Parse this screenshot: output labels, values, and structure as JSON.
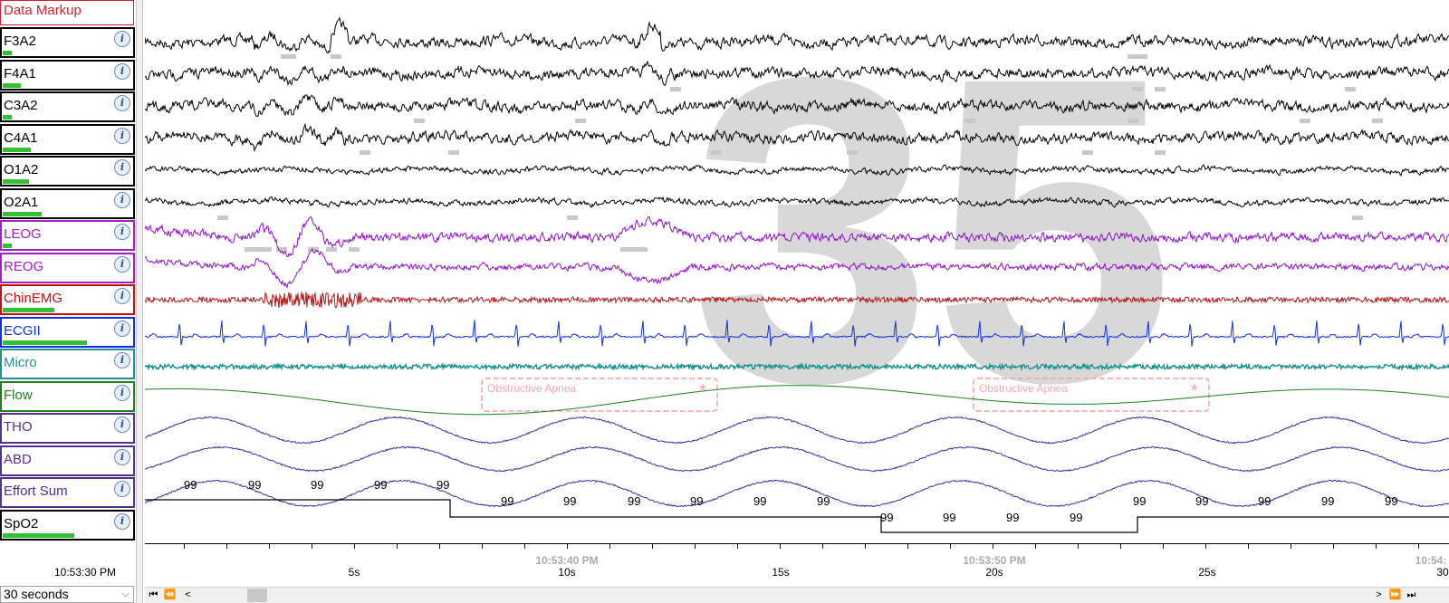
{
  "sidebar": {
    "header": "Data Markup",
    "channels": [
      {
        "name": "F3A2",
        "color": "#000000",
        "border": "#000000",
        "level": 0.07
      },
      {
        "name": "F4A1",
        "color": "#000000",
        "border": "#000000",
        "level": 0.14
      },
      {
        "name": "C3A2",
        "color": "#000000",
        "border": "#000000",
        "level": 0.07
      },
      {
        "name": "C4A1",
        "color": "#000000",
        "border": "#000000",
        "level": 0.22
      },
      {
        "name": "O1A2",
        "color": "#000000",
        "border": "#000000",
        "level": 0.2
      },
      {
        "name": "O2A1",
        "color": "#000000",
        "border": "#000000",
        "level": 0.3
      },
      {
        "name": "LEOG",
        "color": "#a020c0",
        "border": "#a020c0",
        "level": 0.07
      },
      {
        "name": "REOG",
        "color": "#a020c0",
        "border": "#a020c0",
        "level": 0.0
      },
      {
        "name": "ChinEMG",
        "color": "#c01010",
        "border": "#c01010",
        "level": 0.4
      },
      {
        "name": "ECGII",
        "color": "#1030e0",
        "border": "#1030e0",
        "level": 0.65
      },
      {
        "name": "Micro",
        "color": "#209090",
        "border": "#209090",
        "level": 0.0
      },
      {
        "name": "Flow",
        "color": "#208020",
        "border": "#208020",
        "level": 0.0
      },
      {
        "name": "THO",
        "color": "#503090",
        "border": "#503090",
        "level": 0.0
      },
      {
        "name": "ABD",
        "color": "#503090",
        "border": "#503090",
        "level": 0.0
      },
      {
        "name": "Effort Sum",
        "color": "#503090",
        "border": "#503090",
        "level": 0.0
      },
      {
        "name": "SpO2",
        "color": "#000000",
        "border": "#000000",
        "level": 0.55
      }
    ],
    "start_time": "10:53:30 PM",
    "duration": "30 seconds"
  },
  "epoch_number": "35",
  "events": [
    {
      "label": "Obstructive Apnea"
    },
    {
      "label": "Obstructive Apnea"
    }
  ],
  "spo2_values": [
    "99",
    "99",
    "99",
    "99",
    "99",
    "99",
    "99",
    "99",
    "99",
    "99",
    "99",
    "99",
    "99",
    "99",
    "99",
    "99",
    "99",
    "99",
    "99",
    "99",
    "99",
    "99",
    "99",
    "99",
    "99"
  ],
  "axis": {
    "second_labels": [
      "5s",
      "10s",
      "15s",
      "20s",
      "25s",
      "30"
    ],
    "time_labels": [
      "10:53:40 PM",
      "10:53:50 PM",
      "10:54:"
    ]
  },
  "icons": {
    "info": "info-icon",
    "first": "skip-first-icon",
    "prev": "scroll-left-icon",
    "next": "scroll-right-icon",
    "next_page": "fast-forward-icon",
    "last": "skip-last-icon",
    "dropdown": "chevron-down-icon"
  }
}
